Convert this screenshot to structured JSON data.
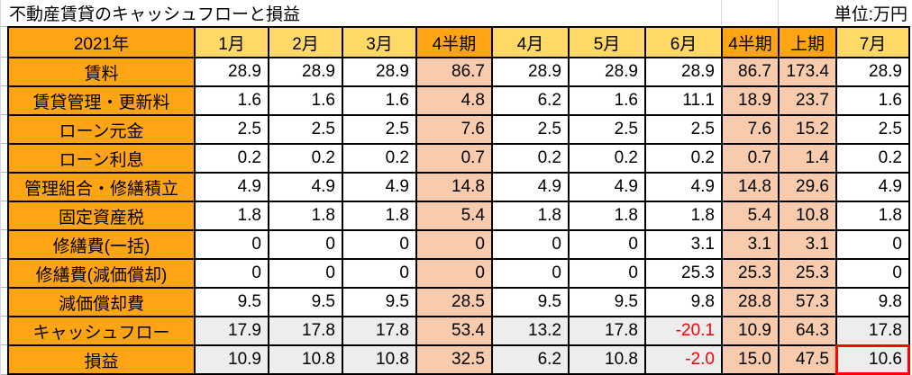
{
  "header": {
    "title": "不動産賃貸のキャッシュフローと損益",
    "unit_label": "単位:万円"
  },
  "colors": {
    "orange": "#FFA513",
    "month_yellow": "#FFD966",
    "quarter_peach": "#F8CBAD",
    "summary_gray": "#EDEDED",
    "negative_red": "#FF0000",
    "highlight_red": "#FF0000",
    "grid_black": "#000000"
  },
  "table": {
    "corner_label": "2021年",
    "columns": [
      {
        "label": "1月",
        "kind": "month"
      },
      {
        "label": "2月",
        "kind": "month"
      },
      {
        "label": "3月",
        "kind": "month"
      },
      {
        "label": "4半期",
        "kind": "quarter"
      },
      {
        "label": "4月",
        "kind": "month"
      },
      {
        "label": "5月",
        "kind": "month"
      },
      {
        "label": "6月",
        "kind": "month"
      },
      {
        "label": "4半期",
        "kind": "quarter"
      },
      {
        "label": "上期",
        "kind": "quarter"
      },
      {
        "label": "7月",
        "kind": "month"
      }
    ],
    "rows": [
      {
        "label": "賃料",
        "kind": "normal",
        "values": [
          "28.9",
          "28.9",
          "28.9",
          "86.7",
          "28.9",
          "28.9",
          "28.9",
          "86.7",
          "173.4",
          "28.9"
        ]
      },
      {
        "label": "賃貸管理・更新料",
        "kind": "normal",
        "values": [
          "1.6",
          "1.6",
          "1.6",
          "4.8",
          "6.2",
          "1.6",
          "11.1",
          "18.9",
          "23.7",
          "1.6"
        ]
      },
      {
        "label": "ローン元金",
        "kind": "normal",
        "values": [
          "2.5",
          "2.5",
          "2.5",
          "7.6",
          "2.5",
          "2.5",
          "2.5",
          "7.6",
          "15.2",
          "2.5"
        ]
      },
      {
        "label": "ローン利息",
        "kind": "normal",
        "values": [
          "0.2",
          "0.2",
          "0.2",
          "0.7",
          "0.2",
          "0.2",
          "0.2",
          "0.7",
          "1.4",
          "0.2"
        ]
      },
      {
        "label": "管理組合・修繕積立",
        "kind": "normal",
        "values": [
          "4.9",
          "4.9",
          "4.9",
          "14.8",
          "4.9",
          "4.9",
          "4.9",
          "14.8",
          "29.6",
          "4.9"
        ]
      },
      {
        "label": "固定資産税",
        "kind": "normal",
        "values": [
          "1.8",
          "1.8",
          "1.8",
          "5.4",
          "1.8",
          "1.8",
          "1.8",
          "5.4",
          "10.8",
          "1.8"
        ]
      },
      {
        "label": "修繕費(一括)",
        "kind": "normal",
        "values": [
          "0",
          "0",
          "0",
          "0",
          "0",
          "0",
          "3.1",
          "3.1",
          "3.1",
          "0"
        ]
      },
      {
        "label": "修繕費(減価償却)",
        "kind": "normal",
        "values": [
          "0",
          "0",
          "0",
          "0",
          "0",
          "0",
          "25.3",
          "25.3",
          "25.3",
          "0"
        ]
      },
      {
        "label": "減価償却費",
        "kind": "normal",
        "values": [
          "9.5",
          "9.5",
          "9.5",
          "28.5",
          "9.5",
          "9.5",
          "9.8",
          "28.8",
          "57.3",
          "9.8"
        ]
      },
      {
        "label": "キャッシュフロー",
        "kind": "summary",
        "values": [
          "17.9",
          "17.8",
          "17.8",
          "53.4",
          "13.2",
          "17.8",
          "-20.1",
          "10.9",
          "64.3",
          "17.8"
        ]
      },
      {
        "label": "損益",
        "kind": "summary",
        "values": [
          "10.9",
          "10.8",
          "10.8",
          "32.5",
          "6.2",
          "10.8",
          "-2.0",
          "15.0",
          "47.5",
          "10.6"
        ]
      }
    ],
    "highlight_cell": {
      "row_label": "損益",
      "column_label": "7月",
      "row_index": 10,
      "col_index": 9
    }
  }
}
